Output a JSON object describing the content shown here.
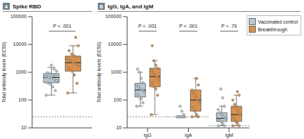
{
  "chart_data": [
    {
      "type": "box",
      "panel": "A",
      "title": "Spike RBD",
      "y_label": "Total antibody levels (EC50)",
      "log": "y",
      "ylim": [
        10,
        100000
      ],
      "yticks": [
        10,
        100,
        1000,
        10000,
        100000
      ],
      "tick_labels": "y",
      "categories": [
        null
      ],
      "p_values": [
        "P < .001"
      ],
      "limits": [
        25
      ],
      "series": [
        {
          "name": "Vaccinated control",
          "color": "#b9c8d2",
          "boxes": [
            {
              "min": 150,
              "q1": 420,
              "median": 650,
              "q3": 900,
              "max": 1500,
              "points": [
                150,
                220,
                300,
                380,
                420,
                500,
                560,
                620,
                650,
                700,
                760,
                820,
                880,
                950,
                1100,
                1300,
                1800
              ]
            }
          ]
        },
        {
          "name": "Breakthrough",
          "color": "#d8914c",
          "boxes": [
            {
              "min": 180,
              "q1": 1100,
              "median": 2200,
              "q3": 3800,
              "max": 9000,
              "points": [
                180,
                400,
                800,
                1100,
                1400,
                1700,
                2000,
                2200,
                2600,
                3000,
                3500,
                3900,
                4500,
                6000,
                9000,
                18000
              ]
            }
          ]
        }
      ]
    },
    {
      "type": "box",
      "panel": "B",
      "title": "IgG, IgA, and IgM",
      "y_label": "Total antibody levels (EC50)",
      "log": "y",
      "ylim": [
        10,
        100000
      ],
      "yticks": [
        10,
        100,
        1000,
        10000,
        100000
      ],
      "legend": "upper right",
      "categories": [
        "IgG",
        "IgA",
        "IgM"
      ],
      "p_values": [
        "P < .001",
        "P < .001",
        "P = .79"
      ],
      "limits": [
        25,
        25,
        12
      ],
      "series": [
        {
          "name": "Vaccinated control",
          "color": "#b9c8d2",
          "boxes": [
            {
              "min": 60,
              "q1": 130,
              "median": 230,
              "q3": 400,
              "max": 1000,
              "points": [
                60,
                80,
                110,
                130,
                160,
                200,
                230,
                260,
                300,
                350,
                420,
                600,
                1000,
                1300
              ]
            },
            {
              "min": 25,
              "q1": 25,
              "median": 25,
              "q3": 25,
              "max": 25,
              "points": [
                25,
                25,
                25,
                25,
                25,
                25,
                25,
                25,
                25,
                25,
                30,
                40,
                60
              ]
            },
            {
              "min": 12,
              "q1": 17,
              "median": 22,
              "q3": 35,
              "max": 60,
              "points": [
                12,
                12,
                14,
                17,
                19,
                22,
                25,
                30,
                35,
                45,
                60,
                120,
                250
              ]
            }
          ]
        },
        {
          "name": "Breakthrough",
          "color": "#d8914c",
          "boxes": [
            {
              "min": 30,
              "q1": 300,
              "median": 700,
              "q3": 1400,
              "max": 2600,
              "points": [
                30,
                150,
                250,
                300,
                400,
                550,
                700,
                800,
                1000,
                1200,
                1400,
                1800,
                2600,
                9000
              ]
            },
            {
              "min": 25,
              "q1": 40,
              "median": 100,
              "q3": 230,
              "max": 600,
              "points": [
                25,
                25,
                30,
                40,
                55,
                80,
                100,
                130,
                180,
                230,
                350,
                600
              ]
            },
            {
              "min": 12,
              "q1": 17,
              "median": 30,
              "q3": 60,
              "max": 150,
              "points": [
                12,
                12,
                15,
                17,
                22,
                30,
                40,
                55,
                70,
                100,
                150,
                200
              ]
            }
          ]
        }
      ]
    }
  ]
}
